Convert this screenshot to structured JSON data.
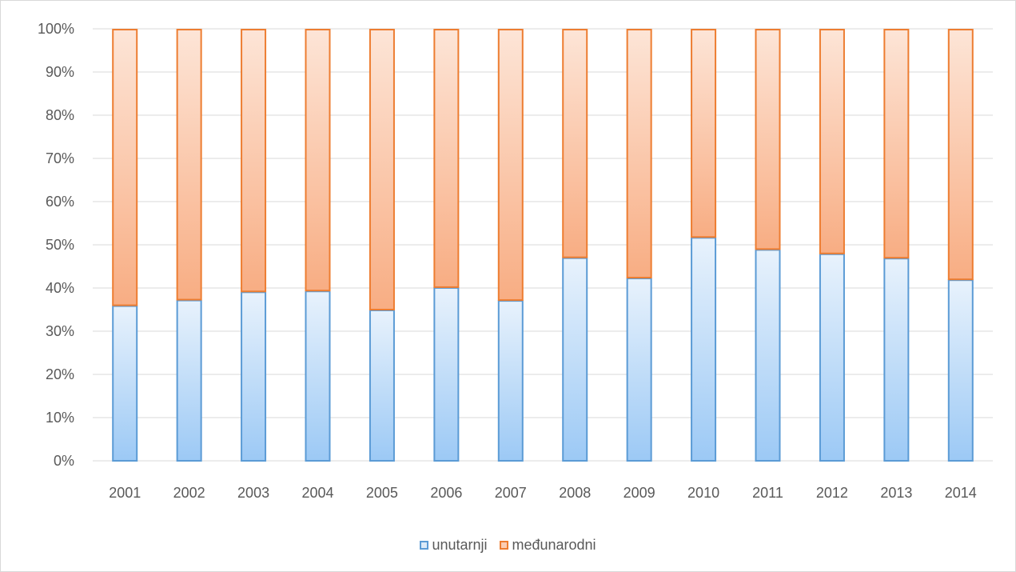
{
  "chart_data": {
    "type": "bar",
    "stacked": true,
    "percent_stacked": true,
    "categories": [
      "2001",
      "2002",
      "2003",
      "2004",
      "2005",
      "2006",
      "2007",
      "2008",
      "2009",
      "2010",
      "2011",
      "2012",
      "2013",
      "2014"
    ],
    "series": [
      {
        "name": "unutarnji",
        "values": [
          36,
          37.3,
          39.2,
          39.4,
          35,
          40.2,
          37.2,
          47.1,
          42.4,
          51.8,
          49,
          48,
          47,
          42
        ],
        "fill_top": "#e8f2fc",
        "fill_bottom": "#9cc9f5",
        "stroke": "#5b9bd5",
        "legend_fill": "#dbeaf8"
      },
      {
        "name": "međunarodni",
        "values": [
          64,
          62.7,
          60.8,
          60.6,
          65,
          59.8,
          62.8,
          52.9,
          57.6,
          48.2,
          51,
          52,
          53,
          58
        ],
        "fill_top": "#fde5d7",
        "fill_bottom": "#f8ad83",
        "stroke": "#ed7d31",
        "legend_fill": "#fbcdb3"
      }
    ],
    "ylim": [
      0,
      100
    ],
    "y_ticks": [
      "0%",
      "10%",
      "20%",
      "30%",
      "40%",
      "50%",
      "60%",
      "70%",
      "80%",
      "90%",
      "100%"
    ],
    "grid": true,
    "grid_color": "#d9d9d9",
    "legend_position": "bottom"
  }
}
